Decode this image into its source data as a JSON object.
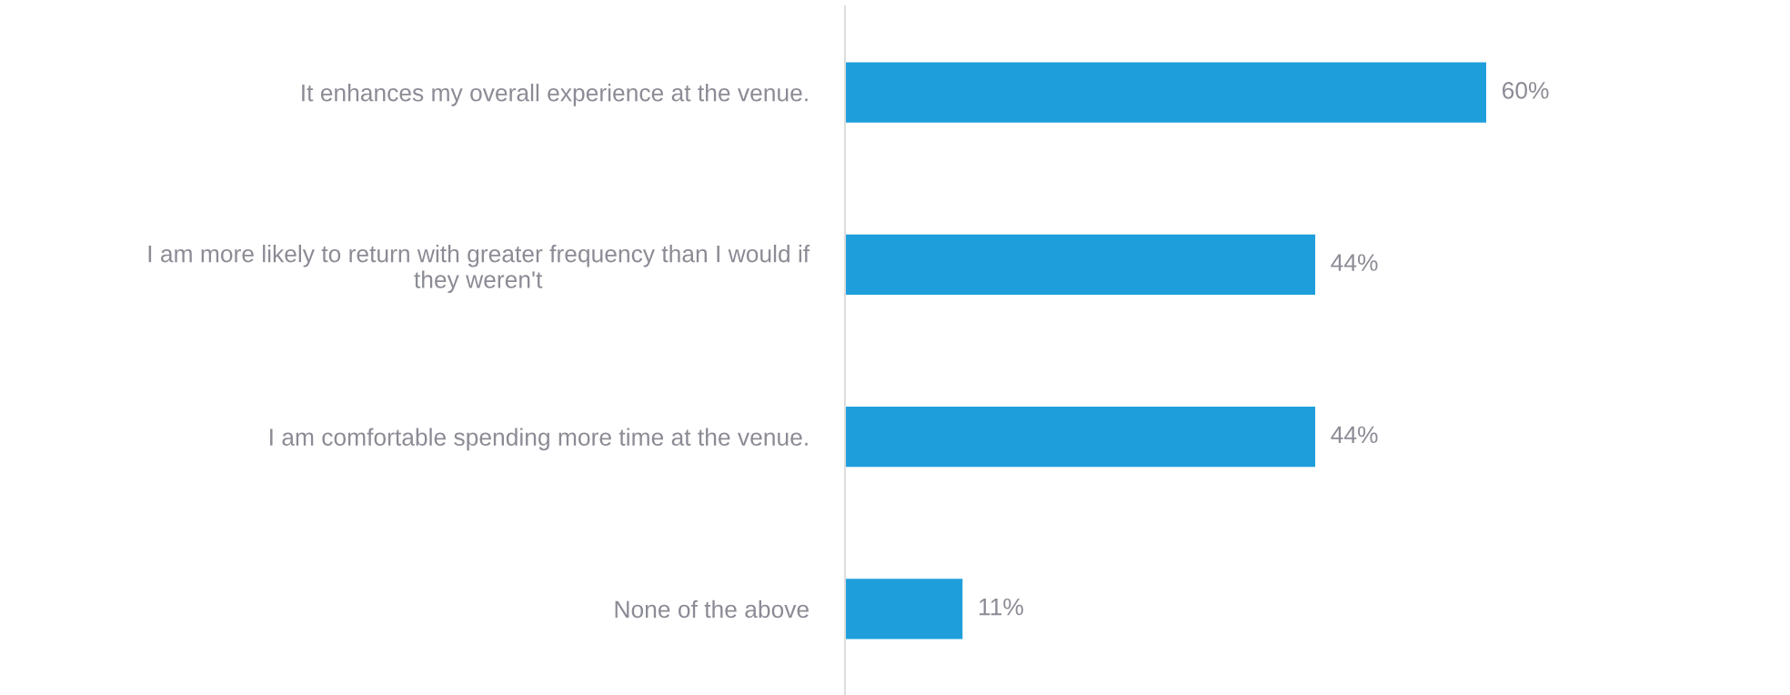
{
  "chart_data": {
    "type": "bar",
    "orientation": "horizontal",
    "categories": [
      "It enhances my overall experience at the venue.",
      "I am more likely to return with greater frequency than I would if they weren't",
      "I am comfortable spending more time at the venue.",
      "None of the above"
    ],
    "values": [
      60,
      44,
      44,
      11
    ],
    "value_labels": [
      "60%",
      "44%",
      "44%",
      "11%"
    ],
    "color": "#1e9fdb",
    "grid": false,
    "legend": false
  }
}
